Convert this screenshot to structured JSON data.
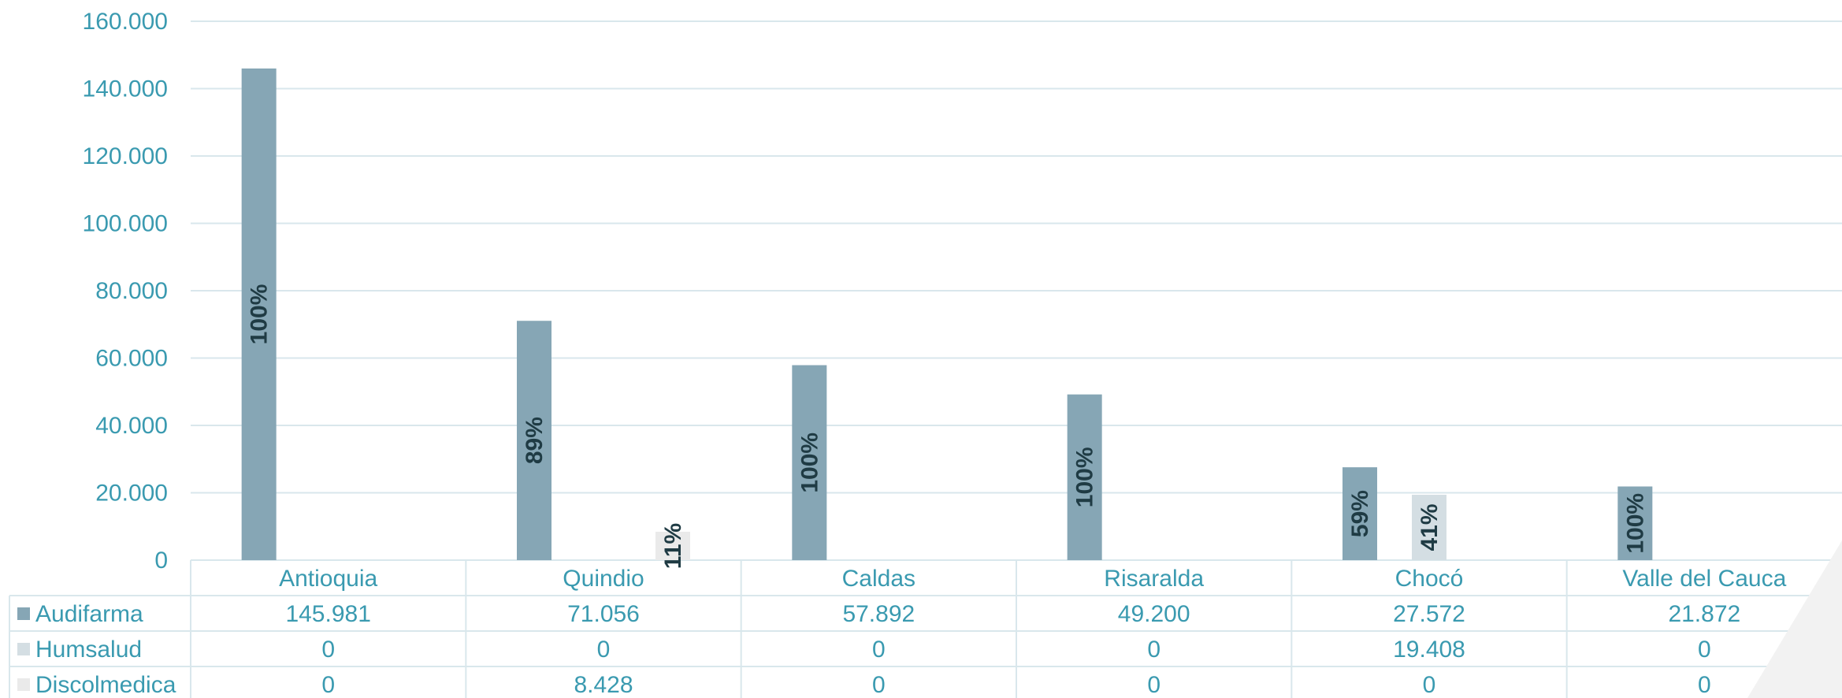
{
  "chart_data": {
    "type": "bar",
    "categories": [
      "Antioquia",
      "Quindio",
      "Caldas",
      "Risaralda",
      "Chocó",
      "Valle del Cauca"
    ],
    "series": [
      {
        "name": "Audifarma",
        "values": [
          145981,
          71056,
          57892,
          49200,
          27572,
          21872
        ],
        "value_labels": [
          "145.981",
          "71.056",
          "57.892",
          "49.200",
          "27.572",
          "21.872"
        ],
        "percent_labels": [
          "100%",
          "89%",
          "100%",
          "100%",
          "59%",
          "100%"
        ],
        "color": "#86a6b5"
      },
      {
        "name": "Humsalud",
        "values": [
          0,
          0,
          0,
          0,
          19408,
          0
        ],
        "value_labels": [
          "0",
          "0",
          "0",
          "0",
          "19.408",
          "0"
        ],
        "percent_labels": [
          "",
          "",
          "",
          "",
          "41%",
          ""
        ],
        "color": "#d4dee3"
      },
      {
        "name": "Discolmedica",
        "values": [
          0,
          8428,
          0,
          0,
          0,
          0
        ],
        "value_labels": [
          "0",
          "8.428",
          "0",
          "0",
          "0",
          "0"
        ],
        "percent_labels": [
          "",
          "11%",
          "",
          "",
          "",
          ""
        ],
        "color": "#eaeaea"
      }
    ],
    "ylim": [
      0,
      160000
    ],
    "yticks": [
      0,
      20000,
      40000,
      60000,
      80000,
      100000,
      120000,
      140000,
      160000
    ],
    "ytick_labels": [
      "0",
      "20.000",
      "40.000",
      "60.000",
      "80.000",
      "100.000",
      "120.000",
      "140.000",
      "160.000"
    ],
    "grid": true,
    "legend": "data-table",
    "colors": {
      "axis_text": "#3a9ab0",
      "grid": "#d9e7ec",
      "label_text": "#1f3b44"
    }
  }
}
